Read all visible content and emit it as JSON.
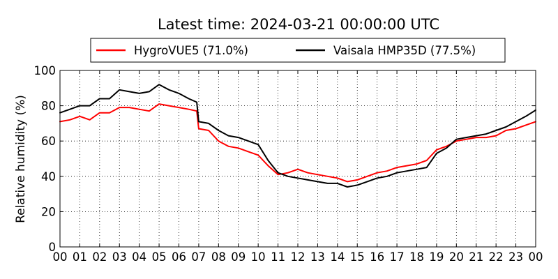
{
  "chart_data": {
    "type": "line",
    "title": "Latest time: 2024-03-21 00:00:00 UTC",
    "xlabel": "",
    "ylabel": "Relative humidity (%)",
    "xlim": [
      0,
      24
    ],
    "ylim": [
      0,
      100
    ],
    "x_ticks": [
      "00",
      "01",
      "02",
      "03",
      "04",
      "05",
      "06",
      "07",
      "08",
      "09",
      "10",
      "11",
      "12",
      "13",
      "14",
      "15",
      "16",
      "17",
      "18",
      "19",
      "20",
      "21",
      "22",
      "23",
      "00"
    ],
    "y_ticks": [
      "0",
      "20",
      "40",
      "60",
      "80",
      "100"
    ],
    "grid": true,
    "legend_position": "top",
    "series": [
      {
        "name": "HygroVUE5 (71.0%)",
        "color": "#ff0000",
        "x": [
          0,
          0.5,
          1,
          1.5,
          2,
          2.5,
          3,
          3.5,
          4,
          4.5,
          5,
          5.5,
          6,
          6.5,
          6.9,
          7,
          7.5,
          8,
          8.5,
          9,
          9.5,
          10,
          10.5,
          11,
          11.5,
          12,
          12.5,
          13,
          13.5,
          14,
          14.5,
          15,
          15.5,
          16,
          16.5,
          17,
          17.5,
          18,
          18.5,
          19,
          19.5,
          20,
          20.5,
          21,
          21.5,
          22,
          22.5,
          23,
          23.5,
          24
        ],
        "y": [
          71,
          72,
          74,
          72,
          76,
          76,
          79,
          79,
          78,
          77,
          81,
          80,
          79,
          78,
          77,
          67,
          66,
          60,
          57,
          56,
          54,
          52,
          46,
          41,
          42,
          44,
          42,
          41,
          40,
          39,
          37,
          38,
          40,
          42,
          43,
          45,
          46,
          47,
          49,
          55,
          57,
          60,
          61,
          62,
          62,
          63,
          66,
          67,
          69,
          71
        ]
      },
      {
        "name": "Vaisala HMP35D (77.5%)",
        "color": "#000000",
        "x": [
          0,
          0.5,
          1,
          1.5,
          2,
          2.5,
          3,
          3.5,
          4,
          4.5,
          5,
          5.5,
          6,
          6.5,
          6.9,
          7,
          7.5,
          8,
          8.5,
          9,
          9.5,
          10,
          10.5,
          11,
          11.5,
          12,
          12.5,
          13,
          13.5,
          14,
          14.5,
          15,
          15.5,
          16,
          16.5,
          17,
          17.5,
          18,
          18.5,
          19,
          19.5,
          20,
          20.5,
          21,
          21.5,
          22,
          22.5,
          23,
          23.5,
          24
        ],
        "y": [
          76,
          78,
          80,
          80,
          84,
          84,
          89,
          88,
          87,
          88,
          92,
          89,
          87,
          84,
          82,
          71,
          70,
          66,
          63,
          62,
          60,
          58,
          49,
          42,
          40,
          39,
          38,
          37,
          36,
          36,
          34,
          35,
          37,
          39,
          40,
          42,
          43,
          44,
          45,
          53,
          56,
          61,
          62,
          63,
          64,
          66,
          68,
          71,
          74,
          77.5
        ]
      }
    ]
  }
}
